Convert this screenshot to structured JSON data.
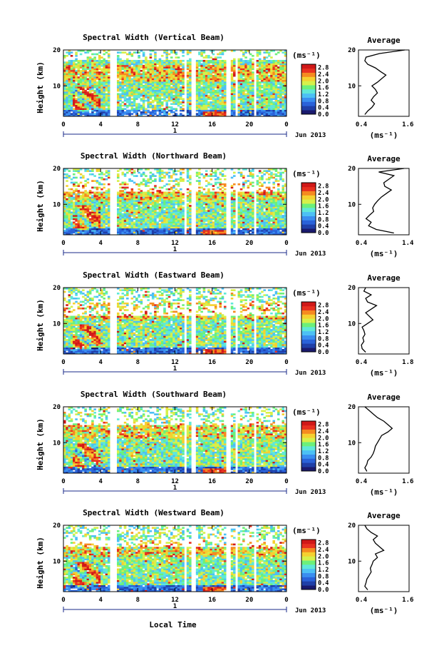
{
  "figure": {
    "date_label": "Jun 2013",
    "day_label": "1",
    "xlabel": "Local Time",
    "ylabel": "Height (km)",
    "units": "(ms⁻¹)",
    "average_title": "Average",
    "average_xlabel": "(ms⁻¹)",
    "x_ticks": [
      "0",
      "4",
      "8",
      "12",
      "16",
      "20",
      "0"
    ],
    "y_ticks": [
      "10",
      "20"
    ],
    "colorbar_ticks": [
      "0.0",
      "0.4",
      "0.8",
      "1.2",
      "1.6",
      "2.0",
      "2.4",
      "2.8"
    ],
    "colormap": [
      "#1a1a6e",
      "#1f3fa8",
      "#2a62d9",
      "#3a8ef0",
      "#4cc0f5",
      "#5fe8d8",
      "#6cf07a",
      "#d6f04a",
      "#f5d030",
      "#f58a20",
      "#e83020",
      "#d01818"
    ]
  },
  "chart_data": [
    {
      "type": "heatmap",
      "title": "Spectral Width (Vertical Beam)",
      "x_range_hours": [
        0,
        24
      ],
      "y_range_km": [
        1.5,
        20
      ],
      "colorbar_range": [
        0.0,
        3.0
      ],
      "average_profile": {
        "title": "Average",
        "x_ticks": [
          "0.4",
          "1.6"
        ],
        "xlim": [
          0.4,
          1.6
        ],
        "height_km": [
          2,
          3,
          4,
          5,
          6,
          7,
          8,
          9,
          10,
          11,
          12,
          13,
          14,
          15,
          16,
          17,
          18,
          19,
          20
        ],
        "width_ms": [
          0.55,
          0.62,
          0.72,
          0.78,
          0.7,
          0.76,
          0.85,
          0.8,
          0.72,
          0.85,
          0.95,
          1.05,
          0.92,
          0.8,
          0.62,
          0.55,
          0.58,
          0.9,
          1.5
        ]
      }
    },
    {
      "type": "heatmap",
      "title": "Spectral Width (Northward Beam)",
      "x_range_hours": [
        0,
        24
      ],
      "y_range_km": [
        1.5,
        20
      ],
      "colorbar_range": [
        0.0,
        3.0
      ],
      "average_profile": {
        "title": "Average",
        "x_ticks": [
          "0.4",
          "1.4"
        ],
        "xlim": [
          0.4,
          1.4
        ],
        "height_km": [
          2,
          3,
          4,
          5,
          6,
          7,
          8,
          9,
          10,
          11,
          12,
          13,
          14,
          15,
          16,
          17,
          18,
          19,
          20
        ],
        "width_ms": [
          1.1,
          0.75,
          0.6,
          0.65,
          0.55,
          0.62,
          0.7,
          0.68,
          0.72,
          0.78,
          0.85,
          0.95,
          1.05,
          0.92,
          0.9,
          1.0,
          1.1,
          0.8,
          1.3
        ]
      }
    },
    {
      "type": "heatmap",
      "title": "Spectral Width (Eastward Beam)",
      "x_range_hours": [
        0,
        24
      ],
      "y_range_km": [
        1.5,
        20
      ],
      "colorbar_range": [
        0.0,
        3.0
      ],
      "average_profile": {
        "title": "Average",
        "x_ticks": [
          "0.4",
          "1.8"
        ],
        "xlim": [
          0.4,
          1.8
        ],
        "height_km": [
          2,
          3,
          4,
          5,
          6,
          7,
          8,
          9,
          10,
          11,
          12,
          13,
          14,
          15,
          16,
          17,
          18,
          19,
          20
        ],
        "width_ms": [
          0.6,
          0.5,
          0.48,
          0.55,
          0.52,
          0.58,
          0.55,
          0.5,
          0.65,
          0.8,
          0.7,
          0.6,
          0.75,
          0.9,
          0.65,
          0.6,
          0.75,
          0.55,
          0.6
        ]
      }
    },
    {
      "type": "heatmap",
      "title": "Spectral Width (Southward Beam)",
      "x_range_hours": [
        0,
        24
      ],
      "y_range_km": [
        1.5,
        20
      ],
      "colorbar_range": [
        0.0,
        3.0
      ],
      "average_profile": {
        "title": "Average",
        "x_ticks": [
          "0.4",
          "1.6"
        ],
        "xlim": [
          0.4,
          1.6
        ],
        "height_km": [
          2,
          3,
          4,
          5,
          6,
          7,
          8,
          9,
          10,
          11,
          12,
          13,
          14,
          15,
          16,
          17,
          18,
          19,
          20
        ],
        "width_ms": [
          0.6,
          0.55,
          0.6,
          0.62,
          0.7,
          0.75,
          0.78,
          0.8,
          0.85,
          0.9,
          0.95,
          1.1,
          1.2,
          1.1,
          1.0,
          0.85,
          0.75,
          0.65,
          0.55
        ]
      }
    },
    {
      "type": "heatmap",
      "title": "Spectral Width (Westward Beam)",
      "x_range_hours": [
        0,
        24
      ],
      "y_range_km": [
        1.5,
        20
      ],
      "colorbar_range": [
        0.0,
        3.0
      ],
      "average_profile": {
        "title": "Average",
        "x_ticks": [
          "0.4",
          "1.6"
        ],
        "xlim": [
          0.4,
          1.6
        ],
        "height_km": [
          2,
          3,
          4,
          5,
          6,
          7,
          8,
          9,
          10,
          11,
          12,
          13,
          14,
          15,
          16,
          17,
          18,
          19,
          20
        ],
        "width_ms": [
          0.62,
          0.55,
          0.58,
          0.6,
          0.65,
          0.7,
          0.68,
          0.72,
          0.75,
          0.85,
          0.8,
          1.0,
          0.9,
          0.8,
          0.75,
          0.85,
          0.7,
          0.6,
          0.55
        ]
      }
    }
  ]
}
